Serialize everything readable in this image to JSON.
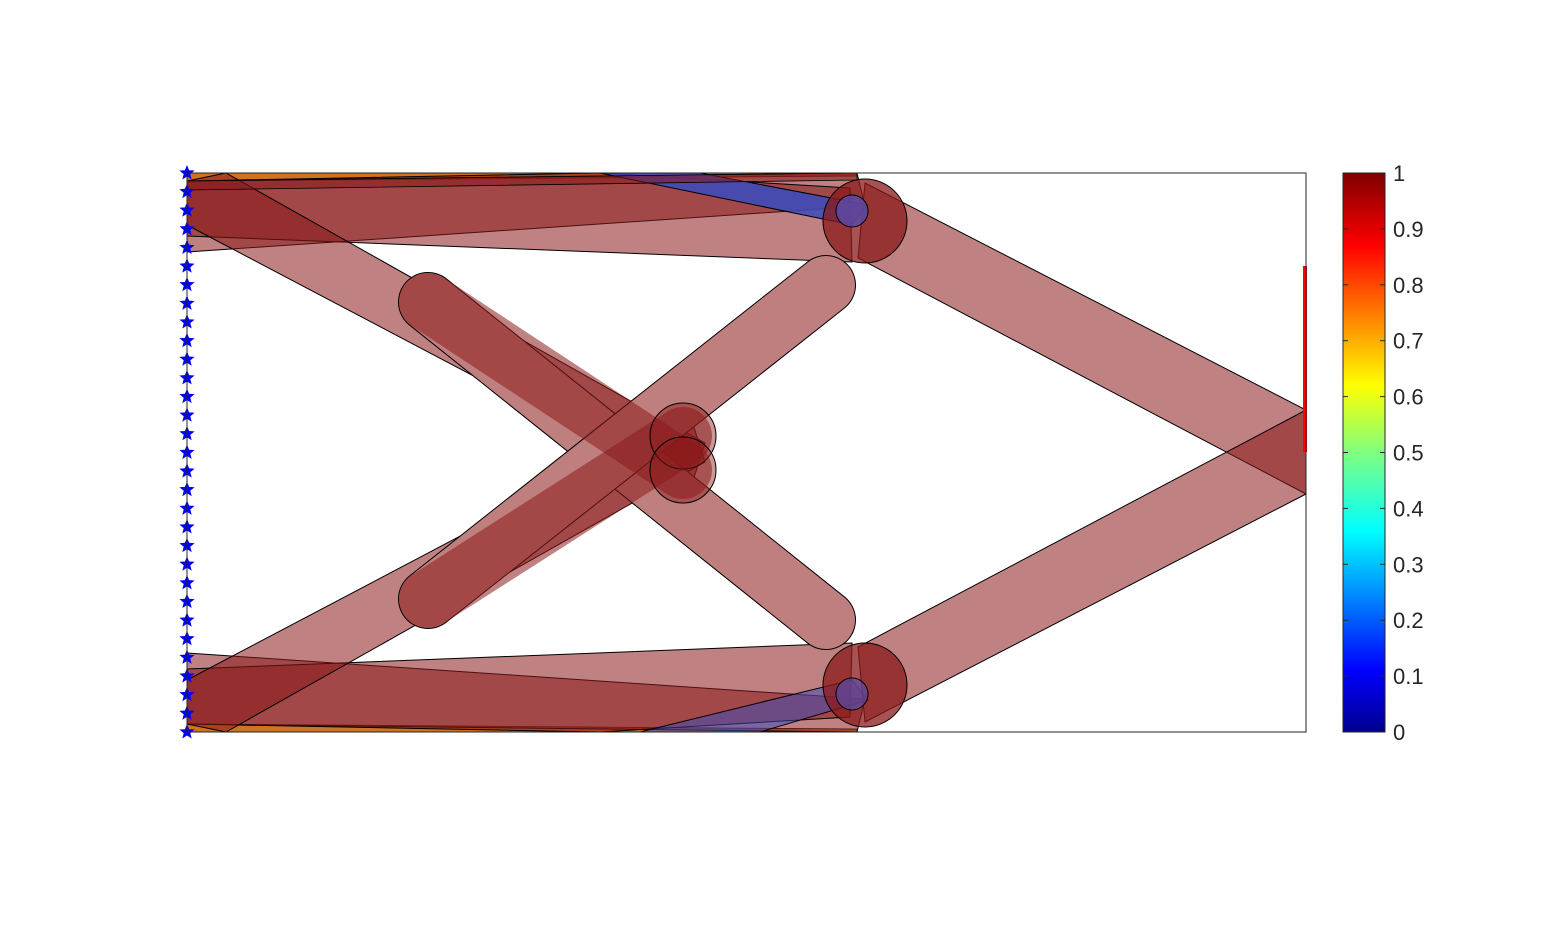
{
  "figure": {
    "type": "topology-optimization-plot",
    "colormap": "jet",
    "background": "#ffffff",
    "frame_color": "#262626",
    "member_fill_color": "#8b1a1a",
    "member_edge_color": "#000000",
    "support_color": "#0000ff",
    "load_color": "#ff0000"
  },
  "colorbar": {
    "tick_labels": [
      "0",
      "0.1",
      "0.2",
      "0.3",
      "0.4",
      "0.5",
      "0.6",
      "0.7",
      "0.8",
      "0.9",
      "1"
    ],
    "range": [
      0,
      1
    ]
  }
}
